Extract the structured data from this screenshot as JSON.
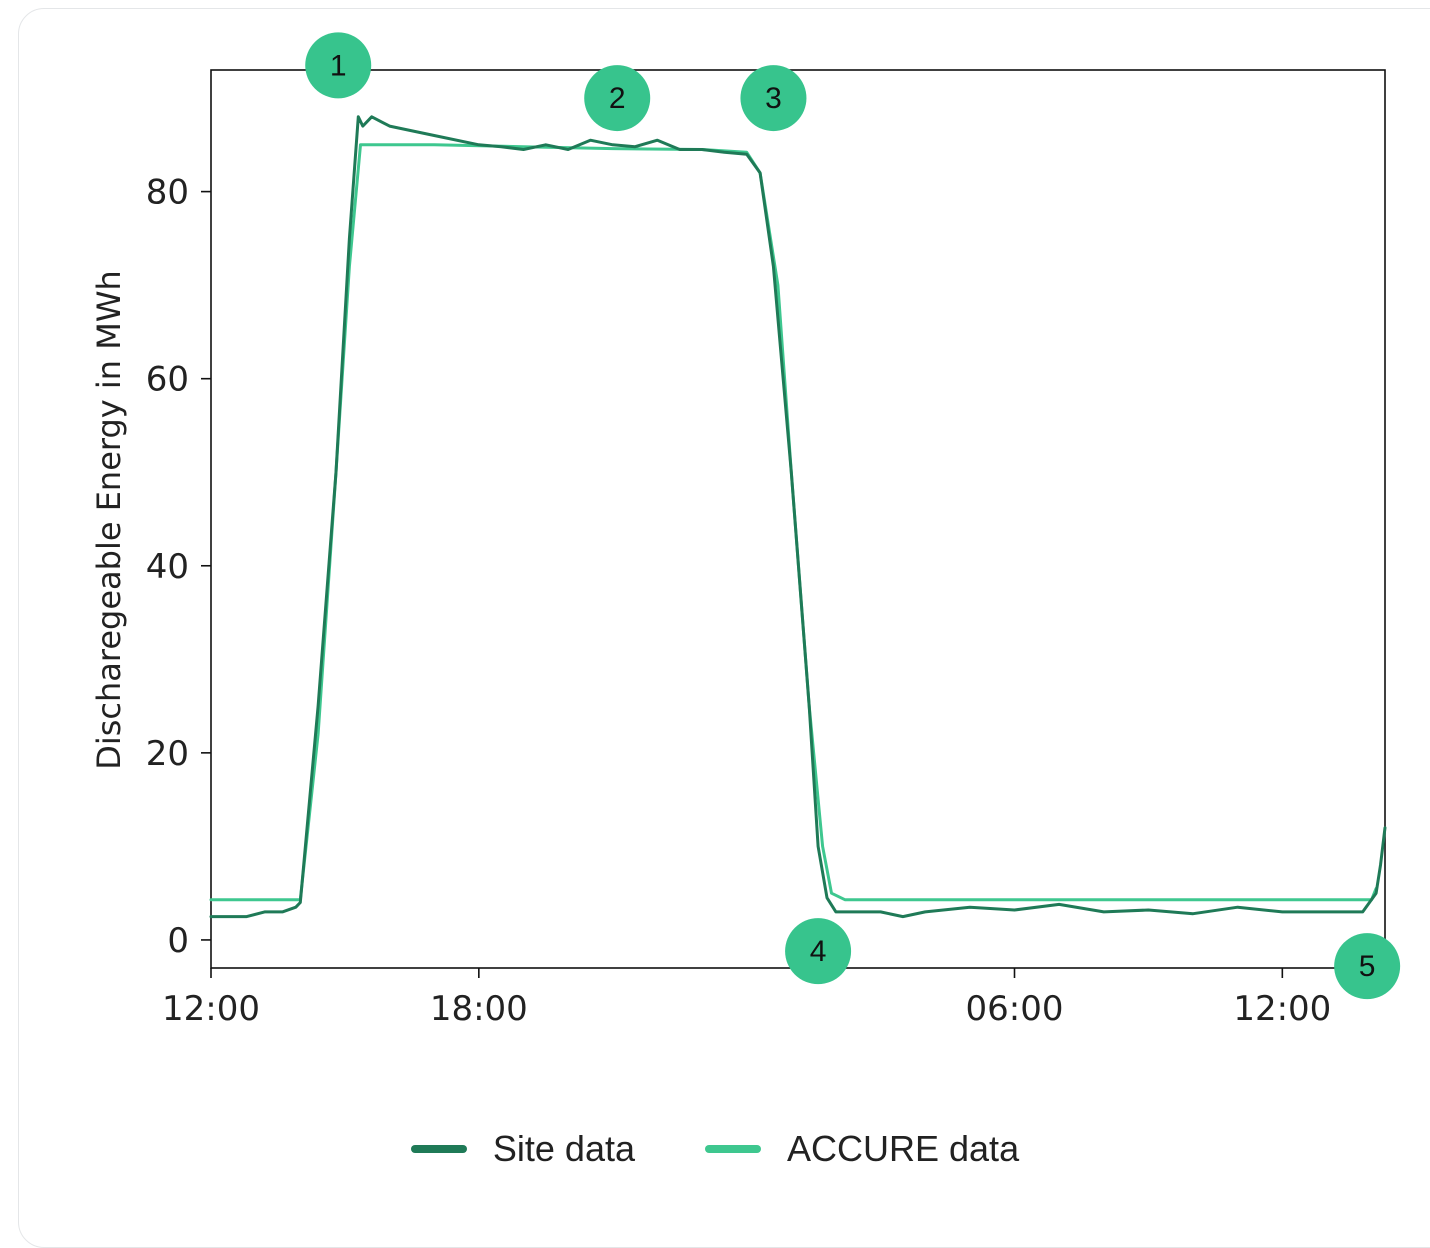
{
  "colors": {
    "site": "#1f7a57",
    "accure": "#3ec78f",
    "marker": "#37c48d",
    "axis": "#111111"
  },
  "chart_data": {
    "type": "line",
    "ylabel": "Discharegeable Energy in MWh",
    "xlabel": "",
    "x_unit": "hours",
    "xlim": [
      0,
      26.3
    ],
    "ylim": [
      -3,
      93
    ],
    "x_ticks": [
      {
        "x": 0,
        "label": "12:00"
      },
      {
        "x": 6,
        "label": "18:00"
      },
      {
        "x": 18,
        "label": "06:00"
      },
      {
        "x": 24,
        "label": "12:00"
      }
    ],
    "y_ticks": [
      {
        "y": 0,
        "label": "0"
      },
      {
        "y": 20,
        "label": "20"
      },
      {
        "y": 40,
        "label": "40"
      },
      {
        "y": 60,
        "label": "60"
      },
      {
        "y": 80,
        "label": "80"
      }
    ],
    "series": [
      {
        "name": "Site data",
        "color": "#1f7a57",
        "points": [
          [
            0,
            2.5
          ],
          [
            0.8,
            2.5
          ],
          [
            1.2,
            3.0
          ],
          [
            1.6,
            3.0
          ],
          [
            1.9,
            3.5
          ],
          [
            2.0,
            4.0
          ],
          [
            2.4,
            25
          ],
          [
            2.8,
            50
          ],
          [
            3.1,
            75
          ],
          [
            3.3,
            88
          ],
          [
            3.4,
            87
          ],
          [
            3.6,
            88
          ],
          [
            4.0,
            87
          ],
          [
            5.0,
            86
          ],
          [
            6.0,
            85
          ],
          [
            6.5,
            84.8
          ],
          [
            7.0,
            84.5
          ],
          [
            7.5,
            85
          ],
          [
            8.0,
            84.5
          ],
          [
            8.5,
            85.5
          ],
          [
            9.0,
            85
          ],
          [
            9.5,
            84.8
          ],
          [
            10.0,
            85.5
          ],
          [
            10.5,
            84.5
          ],
          [
            11.0,
            84.5
          ],
          [
            11.5,
            84.2
          ],
          [
            12.0,
            84
          ],
          [
            12.3,
            82
          ],
          [
            12.6,
            72
          ],
          [
            13.0,
            50
          ],
          [
            13.4,
            25
          ],
          [
            13.6,
            10
          ],
          [
            13.8,
            4.5
          ],
          [
            14.0,
            3.0
          ],
          [
            15.0,
            3.0
          ],
          [
            15.5,
            2.5
          ],
          [
            16.0,
            3.0
          ],
          [
            17.0,
            3.5
          ],
          [
            18.0,
            3.2
          ],
          [
            19.0,
            3.8
          ],
          [
            20.0,
            3.0
          ],
          [
            21.0,
            3.2
          ],
          [
            22.0,
            2.8
          ],
          [
            23.0,
            3.5
          ],
          [
            24.0,
            3.0
          ],
          [
            25.8,
            3.0
          ],
          [
            26.1,
            5.0
          ],
          [
            26.2,
            8.0
          ],
          [
            26.3,
            12
          ]
        ]
      },
      {
        "name": "ACCURE data",
        "color": "#3ec78f",
        "points": [
          [
            0,
            4.3
          ],
          [
            2.0,
            4.3
          ],
          [
            2.4,
            22
          ],
          [
            2.8,
            50
          ],
          [
            3.1,
            72
          ],
          [
            3.35,
            85
          ],
          [
            5.0,
            85
          ],
          [
            7.0,
            84.8
          ],
          [
            9.0,
            84.6
          ],
          [
            11.0,
            84.5
          ],
          [
            12.0,
            84.2
          ],
          [
            12.3,
            82
          ],
          [
            12.7,
            70
          ],
          [
            13.0,
            50
          ],
          [
            13.4,
            25
          ],
          [
            13.7,
            10
          ],
          [
            13.9,
            5.0
          ],
          [
            14.2,
            4.3
          ],
          [
            26.0,
            4.3
          ],
          [
            26.1,
            5.5
          ]
        ]
      }
    ],
    "annotations": [
      {
        "label": "1",
        "x": 2.85,
        "y": 93.5
      },
      {
        "label": "2",
        "x": 9.1,
        "y": 90
      },
      {
        "label": "3",
        "x": 12.6,
        "y": 90
      },
      {
        "label": "4",
        "x": 13.6,
        "y": -1.2
      },
      {
        "label": "5",
        "x": 25.9,
        "y": -2.8
      }
    ]
  },
  "legend": {
    "site_label": "Site data",
    "accure_label": "ACCURE data"
  }
}
